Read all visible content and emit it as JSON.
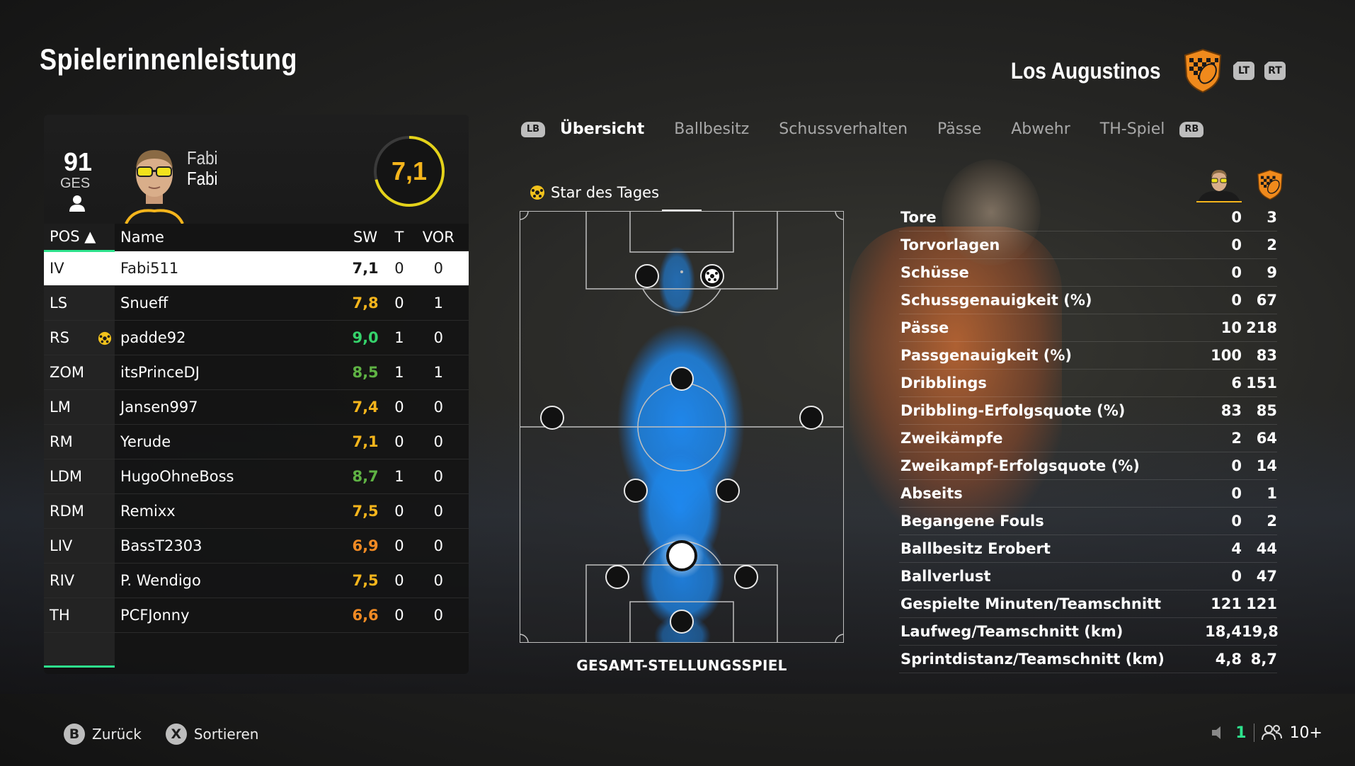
{
  "page": {
    "title": "Spielerinnenleistung"
  },
  "team": {
    "name": "Los Augustinos",
    "lt_label": "LT",
    "rt_label": "RT",
    "crest_icon": "team-crest-icon"
  },
  "player": {
    "overall": "91",
    "overall_label": "GES",
    "first_name": "Fabi",
    "last_name": "Fabi",
    "rating": "7,1",
    "rating_fraction": 0.71
  },
  "table": {
    "headers": {
      "pos": "POS ▲",
      "name": "Name",
      "sw": "SW",
      "t": "T",
      "vor": "VOR"
    },
    "rows": [
      {
        "pos": "IV",
        "name": "Fabi511",
        "sw": "7,1",
        "t": "0",
        "vor": "0",
        "color": "#1a1a1a",
        "star": false,
        "selected": true
      },
      {
        "pos": "LS",
        "name": "Snueff",
        "sw": "7,8",
        "t": "0",
        "vor": "1",
        "color": "#f5b51c",
        "star": false
      },
      {
        "pos": "RS",
        "name": "padde92",
        "sw": "9,0",
        "t": "1",
        "vor": "0",
        "color": "#35d36b",
        "star": true
      },
      {
        "pos": "ZOM",
        "name": "itsPrinceDJ",
        "sw": "8,5",
        "t": "1",
        "vor": "1",
        "color": "#5fb344",
        "star": false
      },
      {
        "pos": "LM",
        "name": "Jansen997",
        "sw": "7,4",
        "t": "0",
        "vor": "0",
        "color": "#f5b51c",
        "star": false
      },
      {
        "pos": "RM",
        "name": "Yerude",
        "sw": "7,1",
        "t": "0",
        "vor": "0",
        "color": "#f5b51c",
        "star": false
      },
      {
        "pos": "LDM",
        "name": "HugoOhneBoss",
        "sw": "8,7",
        "t": "1",
        "vor": "0",
        "color": "#5fb344",
        "star": false
      },
      {
        "pos": "RDM",
        "name": "Remixx",
        "sw": "7,5",
        "t": "0",
        "vor": "0",
        "color": "#f5b51c",
        "star": false
      },
      {
        "pos": "LIV",
        "name": "BassT2303",
        "sw": "6,9",
        "t": "0",
        "vor": "0",
        "color": "#f08a24",
        "star": false
      },
      {
        "pos": "RIV",
        "name": "P. Wendigo",
        "sw": "7,5",
        "t": "0",
        "vor": "0",
        "color": "#f5b51c",
        "star": false
      },
      {
        "pos": "TH",
        "name": "PCFJonny",
        "sw": "6,6",
        "t": "0",
        "vor": "0",
        "color": "#f08a24",
        "star": false
      }
    ]
  },
  "tabs": {
    "lb_label": "LB",
    "rb_label": "RB",
    "items": [
      "Übersicht",
      "Ballbesitz",
      "Schussverhalten",
      "Pässe",
      "Abwehr",
      "TH-Spiel"
    ],
    "active_index": 0
  },
  "pitch": {
    "star_label": "Star des Tages",
    "caption": "GESAMT-STELLUNGSSPIEL",
    "heat_color": "#1e90ff"
  },
  "stats": {
    "rows": [
      {
        "label": "Tore",
        "player": "0",
        "team": "3"
      },
      {
        "label": "Torvorlagen",
        "player": "0",
        "team": "2"
      },
      {
        "label": "Schüsse",
        "player": "0",
        "team": "9"
      },
      {
        "label": "Schussgenauigkeit (%)",
        "player": "0",
        "team": "67"
      },
      {
        "label": "Pässe",
        "player": "10",
        "team": "218"
      },
      {
        "label": "Passgenauigkeit (%)",
        "player": "100",
        "team": "83"
      },
      {
        "label": "Dribblings",
        "player": "6",
        "team": "151"
      },
      {
        "label": "Dribbling-Erfolgsquote (%)",
        "player": "83",
        "team": "85"
      },
      {
        "label": "Zweikämpfe",
        "player": "2",
        "team": "64"
      },
      {
        "label": "Zweikampf-Erfolgsquote (%)",
        "player": "0",
        "team": "14"
      },
      {
        "label": "Abseits",
        "player": "0",
        "team": "1"
      },
      {
        "label": "Begangene Fouls",
        "player": "0",
        "team": "2"
      },
      {
        "label": "Ballbesitz Erobert",
        "player": "4",
        "team": "44"
      },
      {
        "label": "Ballverlust",
        "player": "0",
        "team": "47"
      },
      {
        "label": "Gespielte Minuten/Teamschnitt",
        "player": "121",
        "team": "121"
      },
      {
        "label": "Laufweg/Teamschnitt (km)",
        "player": "18,4",
        "team": "19,8"
      },
      {
        "label": "Sprintdistanz/Teamschnitt (km)",
        "player": "4,8",
        "team": "8,7"
      }
    ]
  },
  "footer": {
    "back_button": "B",
    "back_label": "Zurück",
    "sort_button": "X",
    "sort_label": "Sortieren",
    "mic_count": "1",
    "players_count": "10+"
  },
  "colors": {
    "accent": "#2ee38d",
    "rating": "#f5b51c",
    "crest_orange": "#f08a1c"
  }
}
